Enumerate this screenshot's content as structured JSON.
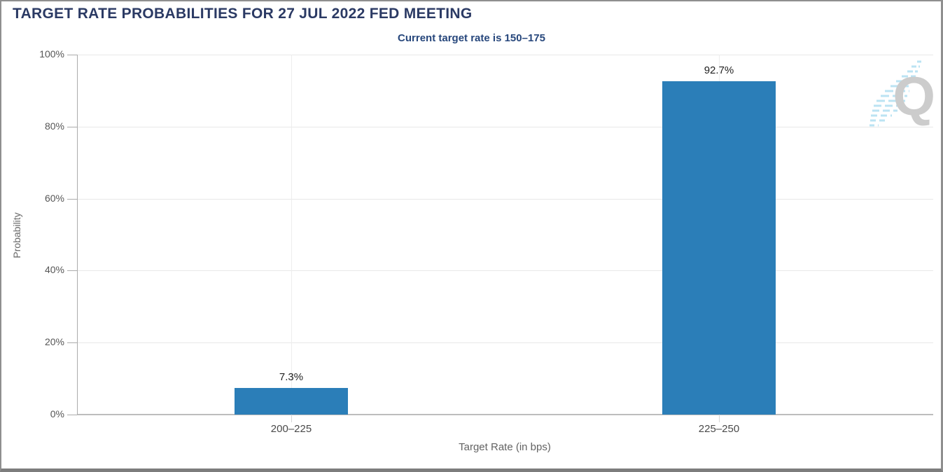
{
  "header": {
    "title": "TARGET RATE PROBABILITIES FOR 27 JUL 2022 FED MEETING",
    "subtitle": "Current target rate is 150–175"
  },
  "chart_data": {
    "type": "bar",
    "title": "TARGET RATE PROBABILITIES FOR 27 JUL 2022 FED MEETING",
    "subtitle": "Current target rate is 150–175",
    "categories": [
      "200–225",
      "225–250"
    ],
    "values": [
      7.3,
      92.7
    ],
    "value_labels": [
      "7.3%",
      "92.7%"
    ],
    "xlabel": "Target Rate (in bps)",
    "ylabel": "Probability",
    "ylim": [
      0,
      100
    ],
    "ytick_labels": [
      "0%",
      "20%",
      "40%",
      "60%",
      "80%",
      "100%"
    ],
    "grid": true,
    "legend": "none",
    "bar_color": "#2b7eb8"
  },
  "colors": {
    "title_navy": "#2b3a64",
    "subtitle_navy": "#27477c",
    "bar_blue": "#2b7eb8",
    "gridline": "#e8e8e8",
    "axis_gray": "#ababab",
    "frame_gray": "#8f8f8f",
    "watermark_gray": "#c7c7c7",
    "watermark_blue": "#b4e0f2"
  },
  "watermark": {
    "name": "quikstrike-logo",
    "letter": "Q"
  }
}
